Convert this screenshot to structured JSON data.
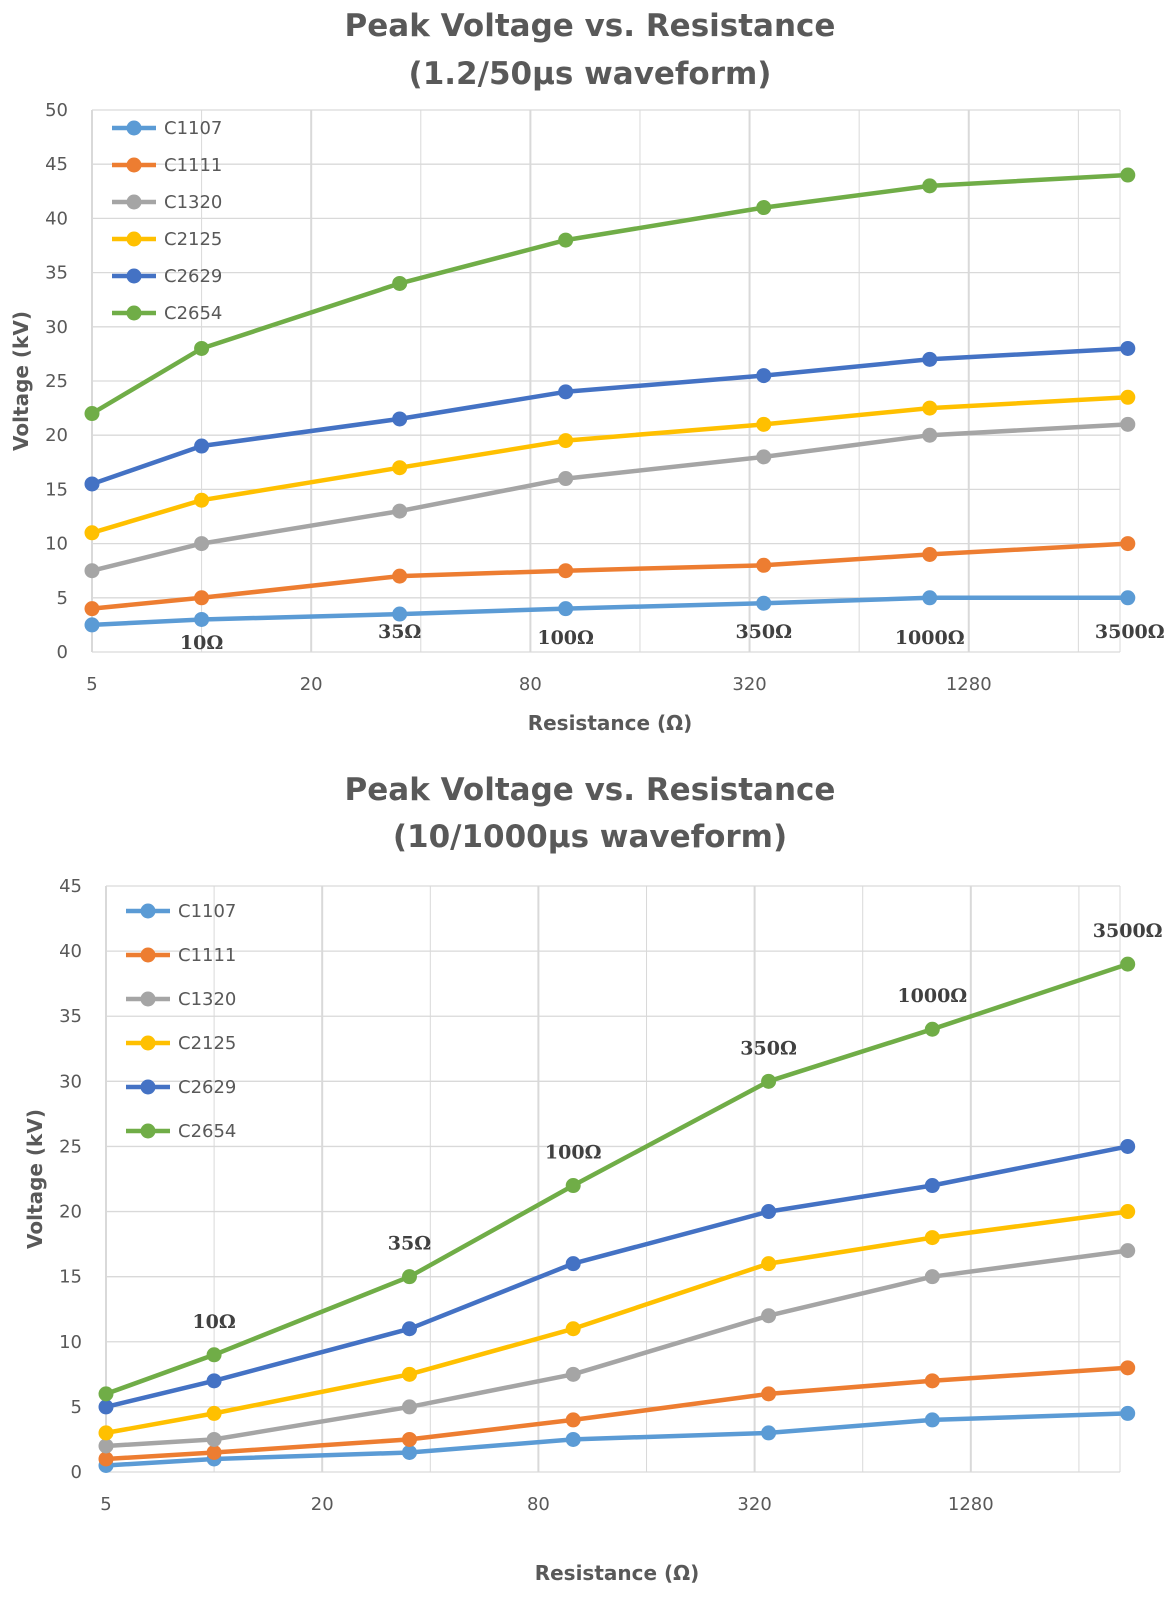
{
  "colors": {
    "C1107": "#5B9BD5",
    "C1111": "#ED7D31",
    "C1320": "#A5A5A5",
    "C2125": "#FFC000",
    "C2629": "#4472C4",
    "C2654": "#70AD47",
    "grid": "#D9D9D9",
    "text": "#595959"
  },
  "chart_data": [
    {
      "type": "line",
      "title_line1": "Peak Voltage vs. Resistance",
      "title_line2": "(1.2/50µs waveform)",
      "xlabel": "Resistance (Ω)",
      "ylabel": "Voltage (kV)",
      "x_scale": "log2",
      "xlim": [
        5,
        3500
      ],
      "x_ticks": [
        5,
        20,
        80,
        320,
        1280
      ],
      "ylim": [
        0,
        50
      ],
      "y_ticks": [
        0,
        5,
        10,
        15,
        20,
        25,
        30,
        35,
        40,
        45,
        50
      ],
      "grid": true,
      "legend_position": "top-left",
      "x": [
        5,
        10,
        35,
        100,
        350,
        1000,
        3500
      ],
      "point_labels": [
        "10Ω",
        "35Ω",
        "100Ω",
        "350Ω",
        "1000Ω",
        "3500Ω"
      ],
      "series": [
        {
          "name": "C1107",
          "values": [
            2.5,
            3,
            3.5,
            4,
            4.5,
            5,
            5
          ]
        },
        {
          "name": "C1111",
          "values": [
            4,
            5,
            7,
            7.5,
            8,
            9,
            10
          ]
        },
        {
          "name": "C1320",
          "values": [
            7.5,
            10,
            13,
            16,
            18,
            20,
            21
          ]
        },
        {
          "name": "C2125",
          "values": [
            11,
            14,
            17,
            19.5,
            21,
            22.5,
            23.5
          ]
        },
        {
          "name": "C2629",
          "values": [
            15.5,
            19,
            21.5,
            24,
            25.5,
            27,
            28
          ]
        },
        {
          "name": "C2654",
          "values": [
            22,
            28,
            34,
            38,
            41,
            43,
            44
          ]
        }
      ]
    },
    {
      "type": "line",
      "title_line1": "Peak Voltage vs. Resistance",
      "title_line2": "(10/1000µs waveform)",
      "xlabel": "Resistance (Ω)",
      "ylabel": "Voltage (kV)",
      "x_scale": "log2",
      "xlim": [
        5,
        3500
      ],
      "x_ticks": [
        5,
        20,
        80,
        320,
        1280
      ],
      "ylim": [
        0,
        45
      ],
      "y_ticks": [
        0,
        5,
        10,
        15,
        20,
        25,
        30,
        35,
        40,
        45
      ],
      "grid": true,
      "legend_position": "top-left",
      "x": [
        5,
        10,
        35,
        100,
        350,
        1000,
        3500
      ],
      "point_labels": [
        "10Ω",
        "35Ω",
        "100Ω",
        "350Ω",
        "1000Ω",
        "3500Ω"
      ],
      "series": [
        {
          "name": "C1107",
          "values": [
            0.5,
            1,
            1.5,
            2.5,
            3,
            4,
            4.5
          ]
        },
        {
          "name": "C1111",
          "values": [
            1,
            1.5,
            2.5,
            4,
            6,
            7,
            8
          ]
        },
        {
          "name": "C1320",
          "values": [
            2,
            2.5,
            5,
            7.5,
            12,
            15,
            17
          ]
        },
        {
          "name": "C2125",
          "values": [
            3,
            4.5,
            7.5,
            11,
            16,
            18,
            20
          ]
        },
        {
          "name": "C2629",
          "values": [
            5,
            7,
            11,
            16,
            20,
            22,
            25
          ]
        },
        {
          "name": "C2654",
          "values": [
            6,
            9,
            15,
            22,
            30,
            34,
            39
          ]
        }
      ]
    }
  ]
}
